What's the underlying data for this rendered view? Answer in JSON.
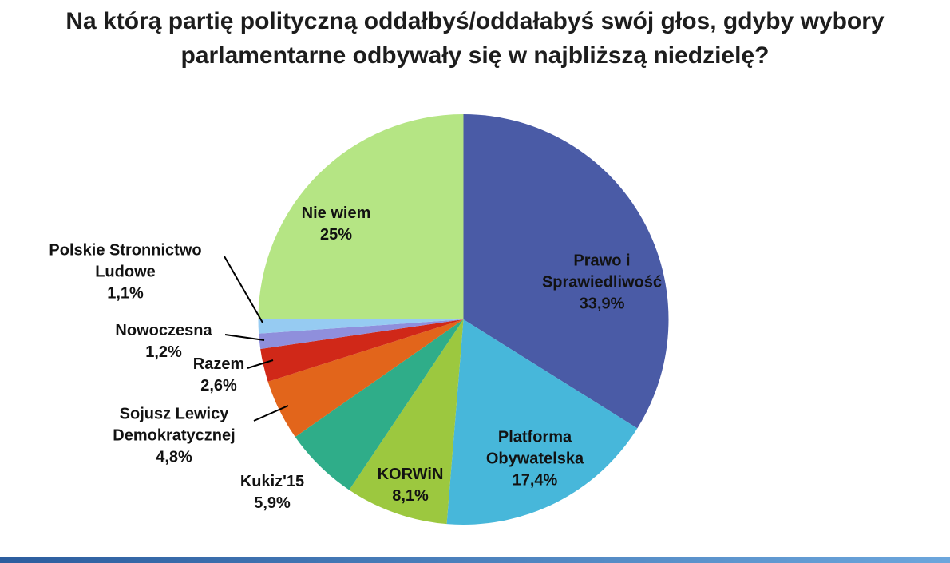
{
  "title": "Na którą partię polityczną oddałbyś/oddałabyś swój głos, gdyby wybory parlamentarne odbywały się w najbliższą niedzielę?",
  "chart_data": {
    "type": "pie",
    "title": "Na którą partię polityczną oddałbyś/oddałabyś swój głos, gdyby wybory parlamentarne odbywały się w najbliższą niedzielę?",
    "unit": "%",
    "start_angle_deg": 0,
    "direction": "clockwise",
    "segments": [
      {
        "id": "prawo-i-sprawiedliwosc",
        "label": "Prawo i\nSprawiedliwość",
        "value": 33.9,
        "pct_label": "33,9%",
        "color": "#4A5BA6"
      },
      {
        "id": "platforma-obywatelska",
        "label": "Platforma\nObywatelska",
        "value": 17.4,
        "pct_label": "17,4%",
        "color": "#47B7DA"
      },
      {
        "id": "korwin",
        "label": "KORWiN",
        "value": 8.1,
        "pct_label": "8,1%",
        "color": "#9CC83F"
      },
      {
        "id": "kukiz15",
        "label": "Kukiz'15",
        "value": 5.9,
        "pct_label": "5,9%",
        "color": "#2FAD89"
      },
      {
        "id": "sojusz-lewicy-demokratycznej",
        "label": "Sojusz Lewicy\nDemokratycznej",
        "value": 4.8,
        "pct_label": "4,8%",
        "color": "#E2651B"
      },
      {
        "id": "razem",
        "label": "Razem",
        "value": 2.6,
        "pct_label": "2,6%",
        "color": "#D02818"
      },
      {
        "id": "nowoczesna",
        "label": "Nowoczesna",
        "value": 1.2,
        "pct_label": "1,2%",
        "color": "#8F8FDC"
      },
      {
        "id": "polskie-stronnictwo-ludowe",
        "label": "Polskie Stronnictwo\nLudowe",
        "value": 1.1,
        "pct_label": "1,1%",
        "color": "#96CBF2"
      },
      {
        "id": "nie-wiem",
        "label": "Nie wiem",
        "value": 25.0,
        "pct_label": "25%",
        "color": "#B5E584"
      }
    ]
  }
}
